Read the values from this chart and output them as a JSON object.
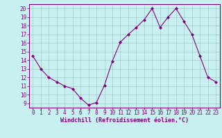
{
  "x": [
    0,
    1,
    2,
    3,
    4,
    5,
    6,
    7,
    8,
    9,
    10,
    11,
    12,
    13,
    14,
    15,
    16,
    17,
    18,
    19,
    20,
    21,
    22,
    23
  ],
  "y": [
    14.5,
    13.0,
    12.0,
    11.5,
    11.0,
    10.7,
    9.6,
    8.8,
    9.1,
    11.1,
    13.9,
    16.1,
    17.0,
    17.8,
    18.7,
    20.0,
    17.8,
    19.0,
    20.0,
    18.5,
    17.0,
    14.5,
    12.0,
    11.5
  ],
  "line_color": "#800080",
  "marker": "D",
  "marker_size": 2,
  "bg_color": "#c8f0f0",
  "grid_color": "#a0cccc",
  "xlabel": "Windchill (Refroidissement éolien,°C)",
  "xlabel_color": "#800080",
  "tick_color": "#800080",
  "spine_color": "#800080",
  "ylim": [
    8.5,
    20.5
  ],
  "yticks": [
    9,
    10,
    11,
    12,
    13,
    14,
    15,
    16,
    17,
    18,
    19,
    20
  ],
  "xlim": [
    -0.5,
    23.5
  ],
  "xticks": [
    0,
    1,
    2,
    3,
    4,
    5,
    6,
    7,
    8,
    9,
    10,
    11,
    12,
    13,
    14,
    15,
    16,
    17,
    18,
    19,
    20,
    21,
    22,
    23
  ],
  "tick_fontsize": 5.5,
  "xlabel_fontsize": 6.0
}
